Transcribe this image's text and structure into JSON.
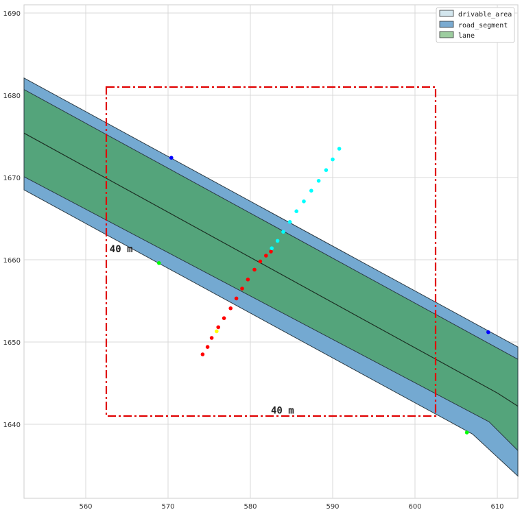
{
  "chart_data": {
    "type": "scatter",
    "title": "",
    "xlabel": "",
    "ylabel": "",
    "xlim": [
      552.5,
      612.5
    ],
    "ylim": [
      1631,
      1691
    ],
    "x_ticks": [
      560,
      570,
      580,
      590,
      600,
      610
    ],
    "y_ticks": [
      1640,
      1650,
      1660,
      1670,
      1680,
      1690
    ],
    "grid": true,
    "legend_position": "top-right",
    "legend": [
      {
        "label": "drivable_area",
        "color": "#d3e6ee"
      },
      {
        "label": "road_segment",
        "color": "#7aaad0"
      },
      {
        "label": "lane",
        "color": "#9dcd9f"
      }
    ],
    "map_polygons": [
      {
        "name": "road_segment",
        "color": "#74a9d1",
        "points": [
          [
            552.5,
            1682.1
          ],
          [
            612.5,
            1649.4
          ],
          [
            612.5,
            1633.7
          ],
          [
            607.0,
            1638.8
          ],
          [
            552.5,
            1668.5
          ]
        ]
      },
      {
        "name": "lane",
        "color": "#54a47b",
        "points": [
          [
            552.5,
            1680.7
          ],
          [
            612.5,
            1647.9
          ],
          [
            612.5,
            1636.8
          ],
          [
            609.0,
            1640.3
          ],
          [
            552.5,
            1670.1
          ]
        ]
      }
    ],
    "lane_divider": [
      [
        552.5,
        1675.4
      ],
      [
        610.0,
        1643.8
      ],
      [
        612.5,
        1642.2
      ]
    ],
    "series": [
      {
        "color": "#ff0000",
        "points": [
          [
            574.2,
            1648.5
          ],
          [
            574.8,
            1649.4
          ],
          [
            575.3,
            1650.5
          ],
          [
            576.1,
            1651.8
          ],
          [
            576.8,
            1652.9
          ],
          [
            577.6,
            1654.1
          ],
          [
            578.3,
            1655.3
          ],
          [
            579.0,
            1656.5
          ],
          [
            579.7,
            1657.6
          ],
          [
            580.5,
            1658.8
          ],
          [
            581.2,
            1659.8
          ],
          [
            581.9,
            1660.5
          ],
          [
            582.5,
            1661.0
          ]
        ]
      },
      {
        "color": "#00ffff",
        "points": [
          [
            582.6,
            1661.4
          ],
          [
            583.3,
            1662.3
          ],
          [
            584.0,
            1663.4
          ],
          [
            584.8,
            1664.6
          ],
          [
            585.6,
            1665.9
          ],
          [
            586.5,
            1667.1
          ],
          [
            587.4,
            1668.4
          ],
          [
            588.3,
            1669.6
          ],
          [
            589.2,
            1670.9
          ],
          [
            590.0,
            1672.2
          ],
          [
            590.8,
            1673.5
          ]
        ]
      },
      {
        "color": "#ffff00",
        "points": [
          [
            575.9,
            1651.3
          ]
        ]
      },
      {
        "color": "#0000ff",
        "points": [
          [
            570.4,
            1672.4
          ],
          [
            608.9,
            1651.2
          ]
        ]
      },
      {
        "color": "#00ff00",
        "points": [
          [
            568.9,
            1659.6
          ],
          [
            606.3,
            1639.0
          ]
        ]
      }
    ],
    "box": {
      "x0": 562.5,
      "x1": 602.5,
      "y0": 1641,
      "y1": 1681,
      "color": "#e00000"
    },
    "annotations": [
      {
        "text": "40 m",
        "x": 562.9,
        "y": 1660.9
      },
      {
        "text": "40 m",
        "x": 582.5,
        "y": 1641.3
      }
    ]
  }
}
